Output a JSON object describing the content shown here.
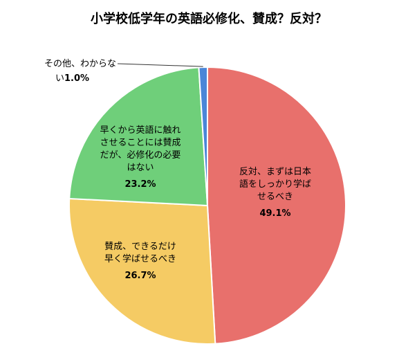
{
  "chart_data": {
    "type": "pie",
    "title": "小学校低学年の英語必修化、賛成？反対？",
    "start": "top",
    "direction": "clockwise",
    "slices": [
      {
        "label_lines": [
          "反対、まずは日本",
          "語をしっかり学ば",
          "せるべき"
        ],
        "value": 49.1,
        "value_label": "49.1%",
        "color": "#e8706c"
      },
      {
        "label_lines": [
          "賛成、できるだけ",
          "早く学ばせるべき"
        ],
        "value": 26.7,
        "value_label": "26.7%",
        "color": "#f5cb64"
      },
      {
        "label_lines": [
          "早くから英語に触れ",
          "させることには賛成",
          "だが、必修化の必要",
          "はない"
        ],
        "value": 23.2,
        "value_label": "23.2%",
        "color": "#6fcf7a"
      },
      {
        "label_lines": [
          "その他、わからな",
          "い"
        ],
        "value": 1.0,
        "value_label": "1.0%",
        "color": "#4a86d8",
        "outside_label": true
      }
    ]
  }
}
